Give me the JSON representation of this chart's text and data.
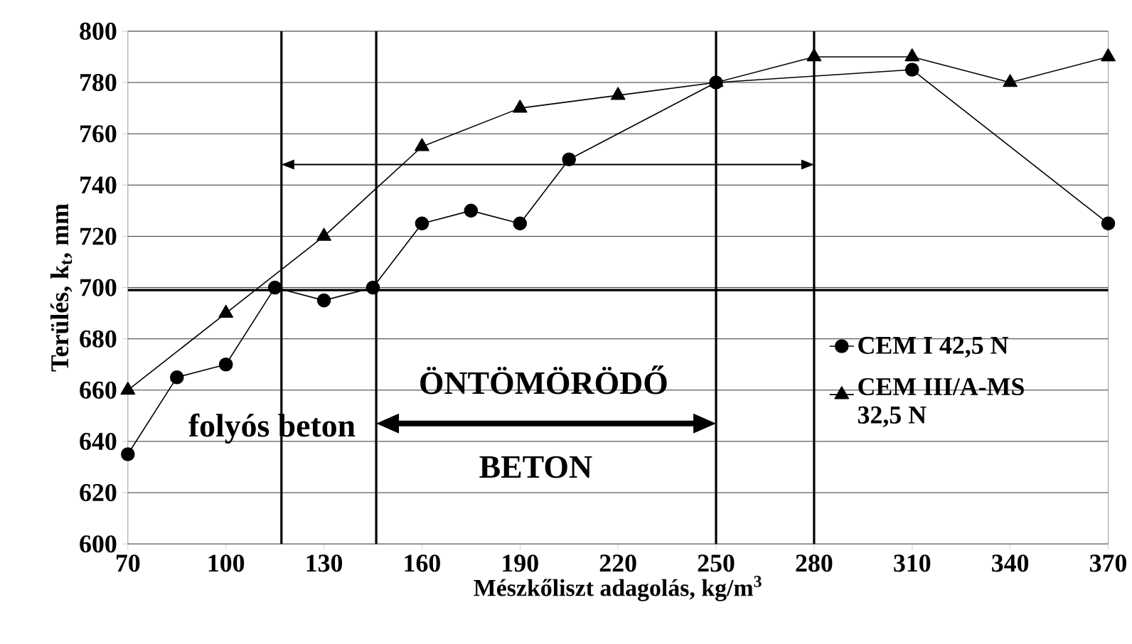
{
  "chart_data": {
    "type": "line",
    "xlabel": "Mészkőliszt adagolás,  kg/m$^{3}$",
    "ylabel": "Terülés, k$_{t}$, mm",
    "xlim": [
      70,
      370
    ],
    "ylim": [
      600,
      800
    ],
    "xticks": [
      70,
      100,
      130,
      160,
      190,
      220,
      250,
      280,
      310,
      340,
      370
    ],
    "yticks": [
      600,
      620,
      640,
      660,
      680,
      700,
      720,
      740,
      760,
      780,
      800
    ],
    "grid": "y",
    "legend": "right",
    "line_style": "solid",
    "series": [
      {
        "name": "CEM I 42,5 N",
        "color": "#000000",
        "marker": "circle",
        "x": [
          70,
          85,
          100,
          115,
          130,
          145,
          160,
          175,
          190,
          205,
          250,
          310,
          370
        ],
        "values": [
          635,
          665,
          670,
          700,
          695,
          700,
          725,
          730,
          725,
          750,
          780,
          785,
          725
        ]
      },
      {
        "name": "CEM III/A-MS 32,5 N",
        "color": "#000000",
        "marker": "triangle",
        "x": [
          70,
          100,
          130,
          160,
          190,
          220,
          250,
          280,
          310,
          340,
          370
        ],
        "values": [
          660,
          690,
          720,
          755,
          770,
          775,
          780,
          790,
          790,
          780,
          790
        ]
      }
    ],
    "ref_lines": [
      {
        "axis": "x",
        "value": 117
      },
      {
        "axis": "x",
        "value": 146
      },
      {
        "axis": "x",
        "value": 250
      },
      {
        "axis": "x",
        "value": 280
      },
      {
        "axis": "y",
        "value": 699
      }
    ],
    "annotations": [
      "folyós  beton",
      "ÖNTÖMÖRÖDŐ",
      "BETON"
    ]
  }
}
